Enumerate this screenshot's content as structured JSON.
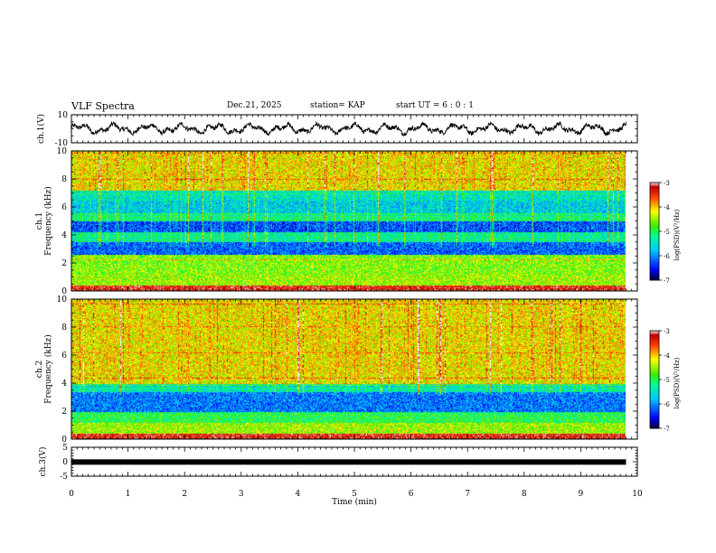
{
  "header": {
    "title": "VLF Spectra",
    "date": "Dec.21, 2025",
    "station": "station= KAP",
    "start_ut": "start  UT  =   6  : 0   : 1"
  },
  "chart_data": [
    {
      "type": "line",
      "panel": "waveform",
      "ylabel": "ch.1(V)",
      "ylim": [
        -10,
        10
      ],
      "yticks": [
        "10",
        "-10"
      ],
      "xlim": [
        0,
        10
      ],
      "x_end": 9.8,
      "mean": 0,
      "amplitude_range": [
        -5,
        5
      ],
      "color": "#000000"
    },
    {
      "type": "heatmap",
      "panel": "spectrogram",
      "ylabel": "ch.1\nFrequency (kHz)",
      "ylim": [
        0,
        10
      ],
      "yticks": [
        "0",
        "2",
        "4",
        "6",
        "8",
        "10"
      ],
      "xlim": [
        0,
        10
      ],
      "x_end": 9.8,
      "zlim": [
        -7,
        -3
      ],
      "bands": [
        {
          "from": 0,
          "to": 1.2,
          "level": -4.5
        },
        {
          "from": 1.2,
          "to": 2.6,
          "level": -4.6
        },
        {
          "from": 2.6,
          "to": 3.5,
          "level": -6.2
        },
        {
          "from": 3.5,
          "to": 4.2,
          "level": -5.3
        },
        {
          "from": 4.2,
          "to": 5.0,
          "level": -6.3
        },
        {
          "from": 5.0,
          "to": 5.6,
          "level": -5.2
        },
        {
          "from": 5.6,
          "to": 6.5,
          "level": -5.7
        },
        {
          "from": 6.5,
          "to": 7.2,
          "level": -5.5
        },
        {
          "from": 7.2,
          "to": 10,
          "level": -4.2
        }
      ]
    },
    {
      "type": "heatmap",
      "panel": "spectrogram",
      "ylabel": "ch.2\nFrequency (kHz)",
      "ylim": [
        0,
        10
      ],
      "yticks": [
        "0",
        "2",
        "4",
        "6",
        "8",
        "10"
      ],
      "xlim": [
        0,
        10
      ],
      "x_end": 9.8,
      "zlim": [
        -7,
        -3
      ],
      "bands": [
        {
          "from": 0,
          "to": 1.2,
          "level": -4.5
        },
        {
          "from": 1.2,
          "to": 2.0,
          "level": -5.0
        },
        {
          "from": 2.0,
          "to": 3.4,
          "level": -6.1
        },
        {
          "from": 3.4,
          "to": 4.0,
          "level": -5.4
        },
        {
          "from": 4.0,
          "to": 10,
          "level": -4.2
        }
      ]
    },
    {
      "type": "line",
      "panel": "ch3",
      "ylabel": "ch.3(V)",
      "ylim": [
        -5,
        5
      ],
      "yticks": [
        "5",
        "0",
        "-5"
      ],
      "xlim": [
        0,
        10
      ],
      "x_end": 9.8,
      "constant": -0.1,
      "color": "#000000"
    }
  ],
  "axis": {
    "xlabel": "Time  (min)",
    "xticks": [
      "0",
      "1",
      "2",
      "3",
      "4",
      "5",
      "6",
      "7",
      "8",
      "9",
      "10"
    ]
  },
  "colorbar": {
    "label": "log(PSD)(V²/Hz)",
    "ticks": [
      "-3",
      "-4",
      "-5",
      "-6",
      "-7"
    ],
    "range": [
      -7,
      -3
    ]
  }
}
